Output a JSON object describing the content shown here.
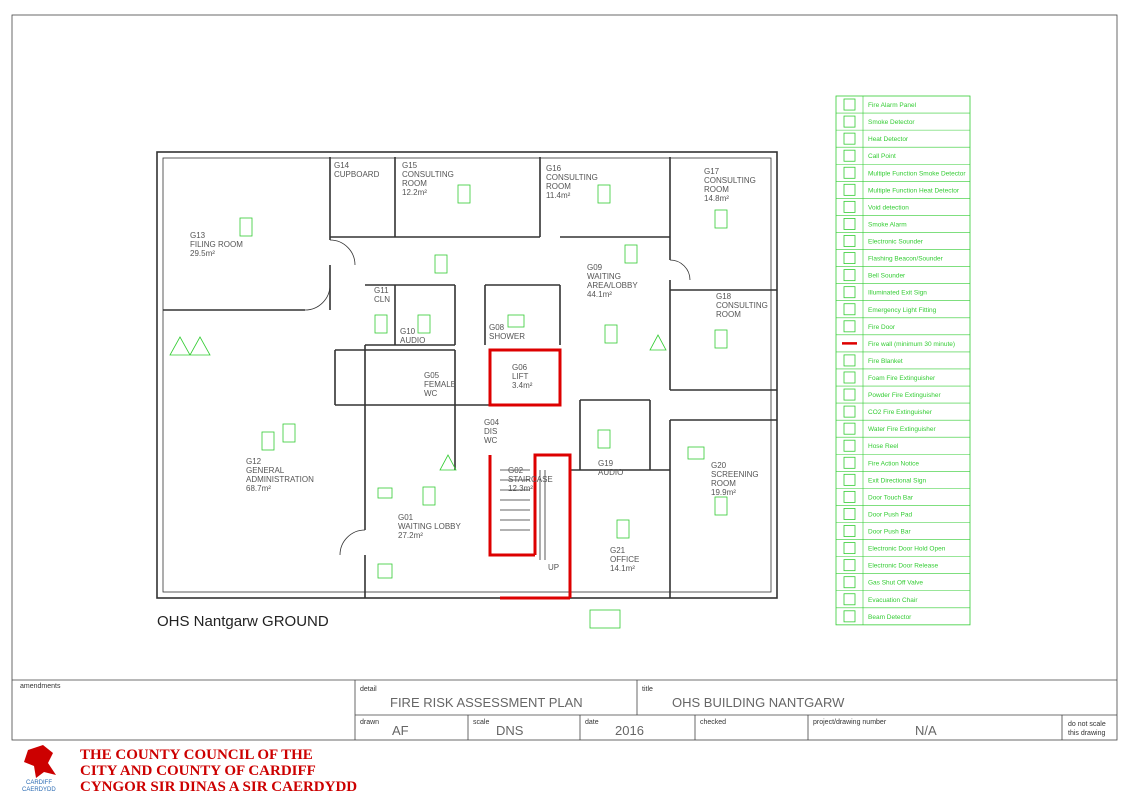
{
  "plan_title": "OHS Nantgarw GROUND",
  "rooms": [
    {
      "lines": [
        "G13",
        "FILING ROOM",
        "29.5m²"
      ]
    },
    {
      "lines": [
        "G14",
        "CUPBOARD"
      ]
    },
    {
      "lines": [
        "G15",
        "CONSULTING",
        "ROOM",
        "12.2m²"
      ]
    },
    {
      "lines": [
        "G16",
        "CONSULTING",
        "ROOM",
        "11.4m²"
      ]
    },
    {
      "lines": [
        "G17",
        "CONSULTING",
        "ROOM",
        "14.8m²"
      ]
    },
    {
      "lines": [
        "G09",
        "WAITING",
        "AREA/LOBBY",
        "44.1m²"
      ]
    },
    {
      "lines": [
        "G11",
        "CLN"
      ]
    },
    {
      "lines": [
        "G10",
        "AUDIO"
      ]
    },
    {
      "lines": [
        "G08",
        "SHOWER"
      ]
    },
    {
      "lines": [
        "G18",
        "CONSULTING",
        "ROOM"
      ]
    },
    {
      "lines": [
        "G06",
        "LIFT",
        "3.4m²"
      ]
    },
    {
      "lines": [
        "G05",
        "FEMALE",
        "WC"
      ]
    },
    {
      "lines": [
        "G04",
        "DIS",
        "WC"
      ]
    },
    {
      "lines": [
        "G12",
        "GENERAL",
        "ADMINISTRATION",
        "68.7m²"
      ]
    },
    {
      "lines": [
        "G02",
        "STAIRCASE",
        "12.3m²"
      ]
    },
    {
      "lines": [
        "G19",
        "AUDIO"
      ]
    },
    {
      "lines": [
        "G20",
        "SCREENING",
        "ROOM",
        "19.9m²"
      ]
    },
    {
      "lines": [
        "G01",
        "WAITING LOBBY",
        "27.2m²"
      ]
    },
    {
      "lines": [
        "G21",
        "OFFICE",
        "14.1m²"
      ]
    },
    {
      "lines": [
        "UP"
      ]
    }
  ],
  "legend": [
    "Fire Alarm Panel",
    "Smoke Detector",
    "Heat Detector",
    "Call Point",
    "Multiple Function Smoke Detector",
    "Multiple Function Heat Detector",
    "Void detection",
    "Smoke Alarm",
    "Electronic Sounder",
    "Flashing Beacon/Sounder",
    "Bell Sounder",
    "Illuminated Exit Sign",
    "Emergency Light Fitting",
    "Fire Door",
    "Fire wall (minimum 30 minute)",
    "Fire Blanket",
    "Foam Fire Extinguisher",
    "Powder Fire Extinguisher",
    "CO2 Fire Extinguisher",
    "Water Fire Extinguisher",
    "Hose Reel",
    "Fire Action Notice",
    "Exit Directional Sign",
    "Door Touch Bar",
    "Door Push Pad",
    "Door Push Bar",
    "Electronic Door Hold Open",
    "Electronic Door Release",
    "Gas Shut Off Valve",
    "Evacuation Chair",
    "Beam Detector"
  ],
  "title_block": {
    "amendments": "amendments",
    "detail": {
      "label": "detail",
      "value": "FIRE RISK ASSESSMENT PLAN"
    },
    "title": {
      "label": "title",
      "value": "OHS BUILDING NANTGARW"
    },
    "drawn": {
      "label": "drawn",
      "value": "AF"
    },
    "scale": {
      "label": "scale",
      "value": "DNS"
    },
    "date": {
      "label": "date",
      "value": "2016"
    },
    "checked": {
      "label": "checked"
    },
    "project": {
      "label": "project/drawing  number",
      "value": "N/A"
    },
    "note": [
      "do not scale",
      "this drawing"
    ]
  },
  "council": {
    "lines": [
      "THE COUNTY COUNCIL OF THE",
      "CITY AND COUNTY OF CARDIFF",
      "CYNGOR SIR DINAS A SIR CAERDYDD"
    ],
    "logo": [
      "CARDIFF",
      "CAERDYDD"
    ]
  }
}
